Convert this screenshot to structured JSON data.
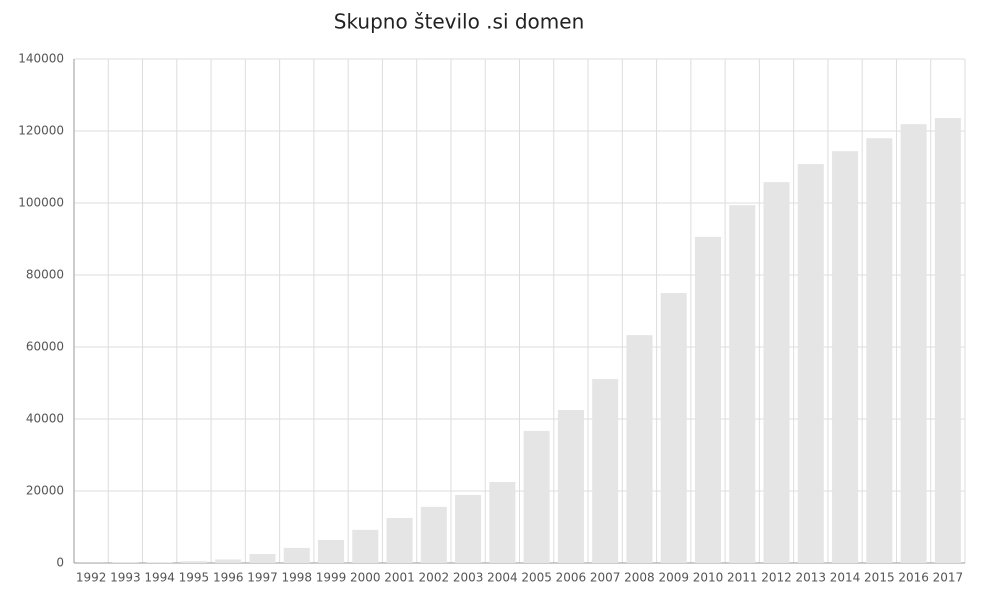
{
  "chart_data": {
    "type": "bar",
    "title": "Skupno število .si domen",
    "categories": [
      "1992",
      "1993",
      "1994",
      "1995",
      "1996",
      "1997",
      "1998",
      "1999",
      "2000",
      "2001",
      "2002",
      "2003",
      "2004",
      "2005",
      "2006",
      "2007",
      "2008",
      "2009",
      "2010",
      "2011",
      "2012",
      "2013",
      "2014",
      "2015",
      "2016",
      "2017"
    ],
    "values": [
      30,
      100,
      200,
      500,
      1000,
      2500,
      4200,
      6400,
      9200,
      12500,
      15600,
      18900,
      22500,
      36700,
      42500,
      51100,
      63300,
      75000,
      90600,
      99400,
      105800,
      110800,
      114400,
      118000,
      121900,
      123600
    ],
    "color": "#e5e5e5",
    "ylim": [
      0,
      140000
    ],
    "yticks": [
      0,
      20000,
      40000,
      60000,
      80000,
      100000,
      120000,
      140000
    ],
    "grid": true
  }
}
